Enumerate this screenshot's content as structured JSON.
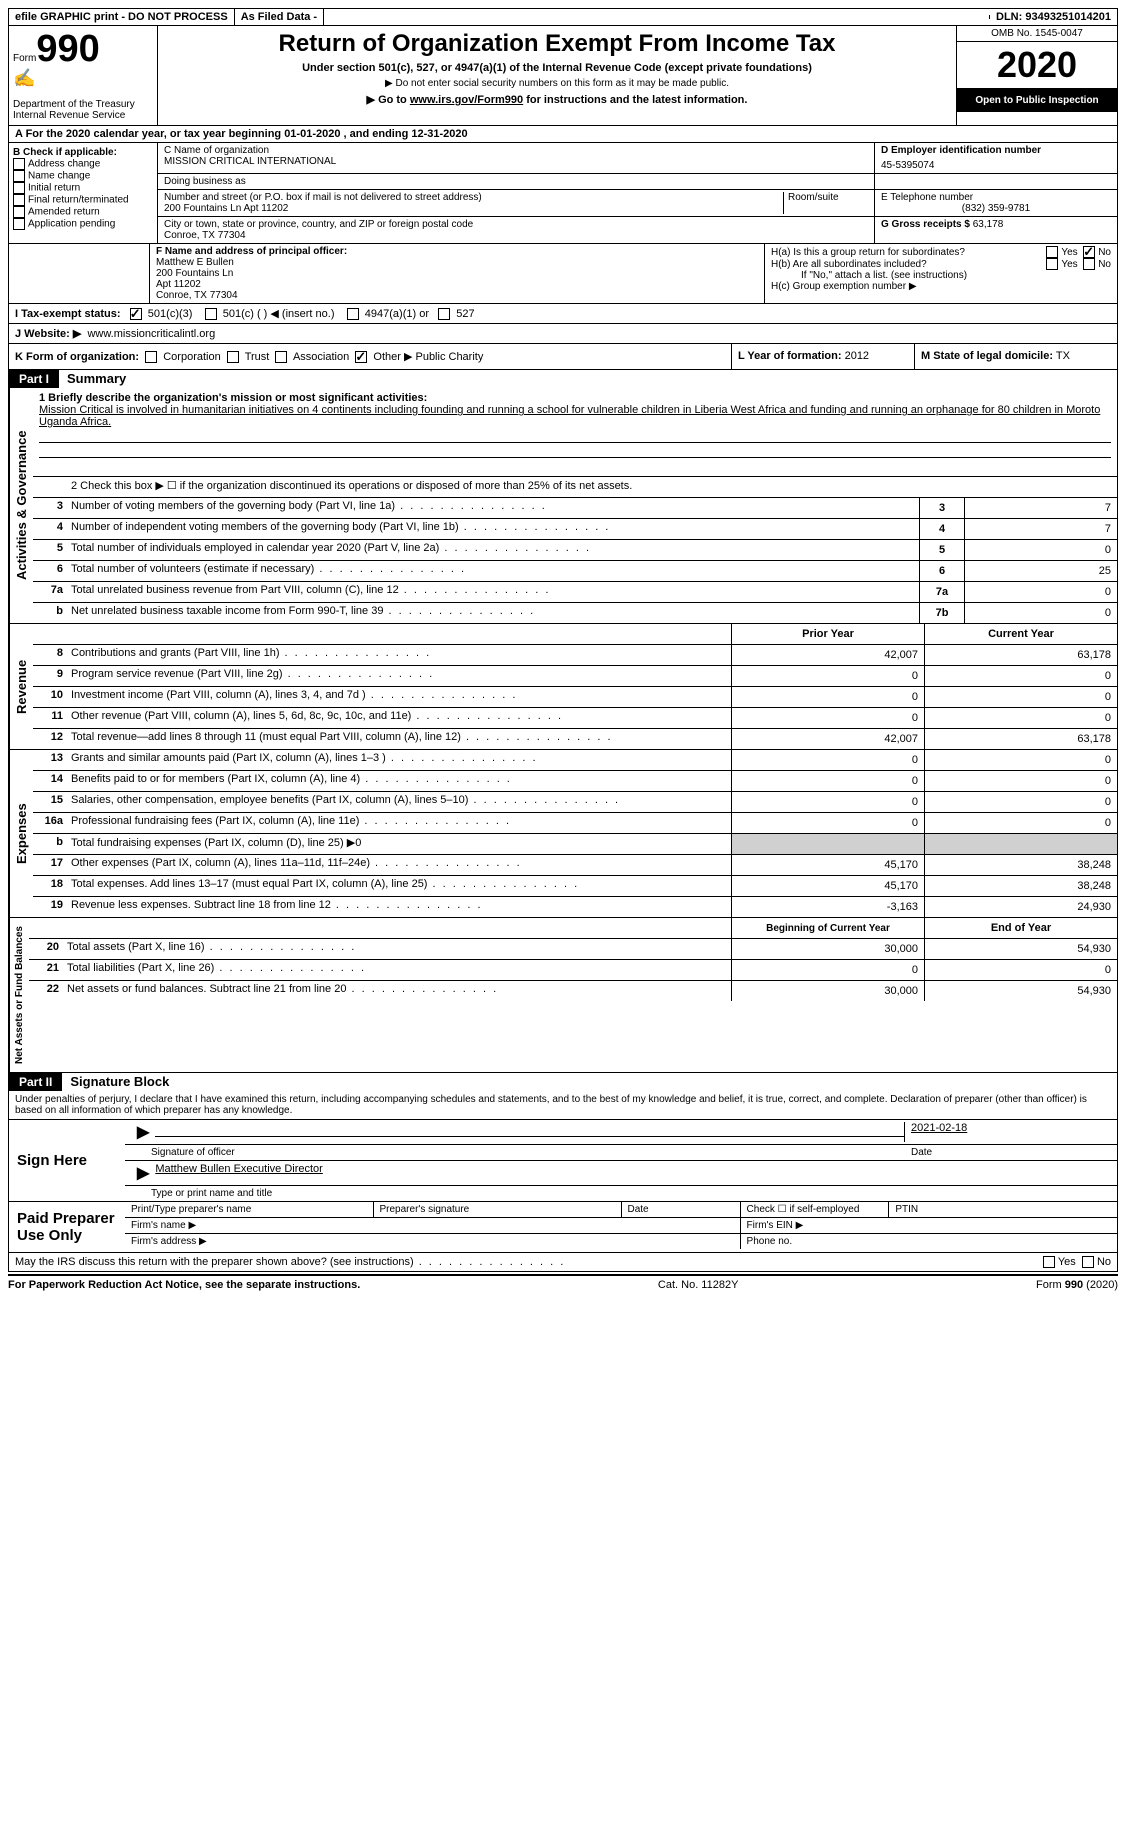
{
  "topbar": {
    "efile": "efile GRAPHIC print - DO NOT PROCESS",
    "asfiled": "As Filed Data -",
    "dln_label": "DLN:",
    "dln": "93493251014201"
  },
  "header": {
    "form_word": "Form",
    "form_number": "990",
    "dept": "Department of the Treasury",
    "irs": "Internal Revenue Service",
    "title": "Return of Organization Exempt From Income Tax",
    "subtitle": "Under section 501(c), 527, or 4947(a)(1) of the Internal Revenue Code (except private foundations)",
    "note1": "▶ Do not enter social security numbers on this form as it may be made public.",
    "note2_pre": "▶ Go to ",
    "note2_link": "www.irs.gov/Form990",
    "note2_post": " for instructions and the latest information.",
    "omb": "OMB No. 1545-0047",
    "year": "2020",
    "inspection": "Open to Public Inspection"
  },
  "row_a": "A  For the 2020 calendar year, or tax year beginning 01-01-2020  , and ending 12-31-2020",
  "section_b": {
    "label": "B Check if applicable:",
    "items": [
      "Address change",
      "Name change",
      "Initial return",
      "Final return/terminated",
      "Amended return",
      "Application pending"
    ]
  },
  "section_c": {
    "name_label": "C Name of organization",
    "name": "MISSION CRITICAL INTERNATIONAL",
    "dba_label": "Doing business as",
    "dba": "",
    "addr_label": "Number and street (or P.O. box if mail is not delivered to street address)",
    "addr": "200 Fountains Ln Apt 11202",
    "room_label": "Room/suite",
    "city_label": "City or town, state or province, country, and ZIP or foreign postal code",
    "city": "Conroe, TX  77304"
  },
  "section_d": {
    "label": "D Employer identification number",
    "value": "45-5395074"
  },
  "section_e": {
    "label": "E Telephone number",
    "value": "(832) 359-9781"
  },
  "section_g": {
    "label": "G Gross receipts $",
    "value": "63,178"
  },
  "section_f": {
    "label": "F  Name and address of principal officer:",
    "name": "Matthew E Bullen",
    "addr1": "200 Fountains Ln",
    "addr2": "Apt 11202",
    "city": "Conroe, TX  77304"
  },
  "section_h": {
    "a": "H(a)  Is this a group return for subordinates?",
    "b": "H(b)  Are all subordinates included?",
    "b_note": "If \"No,\" attach a list. (see instructions)",
    "c": "H(c)  Group exemption number ▶",
    "yes": "Yes",
    "no": "No"
  },
  "section_i": {
    "label": "I  Tax-exempt status:",
    "opt1": "501(c)(3)",
    "opt2": "501(c) (  ) ◀ (insert no.)",
    "opt3": "4947(a)(1) or",
    "opt4": "527"
  },
  "section_j": {
    "label": "J  Website: ▶",
    "value": "www.missioncriticalintl.org"
  },
  "section_k": {
    "label": "K Form of organization:",
    "opts": [
      "Corporation",
      "Trust",
      "Association",
      "Other ▶"
    ],
    "other_val": "Public Charity"
  },
  "section_l": {
    "label": "L Year of formation:",
    "value": "2012"
  },
  "section_m": {
    "label": "M State of legal domicile:",
    "value": "TX"
  },
  "part1": {
    "header": "Part I",
    "title": "Summary",
    "line1_label": "1  Briefly describe the organization's mission or most significant activities:",
    "line1_text": "Mission Critical is involved in humanitarian initiatives on 4 continents including founding and running a school for vulnerable children in Liberia West Africa and funding and running an orphanage for 80 children in Moroto Uganda Africa.",
    "line2": "2   Check this box ▶ ☐ if the organization discontinued its operations or disposed of more than 25% of its net assets.",
    "governance": [
      {
        "n": "3",
        "t": "Number of voting members of the governing body (Part VI, line 1a)",
        "b": "3",
        "v": "7"
      },
      {
        "n": "4",
        "t": "Number of independent voting members of the governing body (Part VI, line 1b)",
        "b": "4",
        "v": "7"
      },
      {
        "n": "5",
        "t": "Total number of individuals employed in calendar year 2020 (Part V, line 2a)",
        "b": "5",
        "v": "0"
      },
      {
        "n": "6",
        "t": "Total number of volunteers (estimate if necessary)",
        "b": "6",
        "v": "25"
      },
      {
        "n": "7a",
        "t": "Total unrelated business revenue from Part VIII, column (C), line 12",
        "b": "7a",
        "v": "0"
      },
      {
        "n": "b",
        "t": "Net unrelated business taxable income from Form 990-T, line 39",
        "b": "7b",
        "v": "0"
      }
    ],
    "col_prior": "Prior Year",
    "col_current": "Current Year",
    "revenue": [
      {
        "n": "8",
        "t": "Contributions and grants (Part VIII, line 1h)",
        "p": "42,007",
        "c": "63,178"
      },
      {
        "n": "9",
        "t": "Program service revenue (Part VIII, line 2g)",
        "p": "0",
        "c": "0"
      },
      {
        "n": "10",
        "t": "Investment income (Part VIII, column (A), lines 3, 4, and 7d )",
        "p": "0",
        "c": "0"
      },
      {
        "n": "11",
        "t": "Other revenue (Part VIII, column (A), lines 5, 6d, 8c, 9c, 10c, and 11e)",
        "p": "0",
        "c": "0"
      },
      {
        "n": "12",
        "t": "Total revenue—add lines 8 through 11 (must equal Part VIII, column (A), line 12)",
        "p": "42,007",
        "c": "63,178"
      }
    ],
    "expenses": [
      {
        "n": "13",
        "t": "Grants and similar amounts paid (Part IX, column (A), lines 1–3 )",
        "p": "0",
        "c": "0"
      },
      {
        "n": "14",
        "t": "Benefits paid to or for members (Part IX, column (A), line 4)",
        "p": "0",
        "c": "0"
      },
      {
        "n": "15",
        "t": "Salaries, other compensation, employee benefits (Part IX, column (A), lines 5–10)",
        "p": "0",
        "c": "0"
      },
      {
        "n": "16a",
        "t": "Professional fundraising fees (Part IX, column (A), line 11e)",
        "p": "0",
        "c": "0"
      },
      {
        "n": "b",
        "t": "Total fundraising expenses (Part IX, column (D), line 25) ▶0",
        "p": "",
        "c": "",
        "grey": true
      },
      {
        "n": "17",
        "t": "Other expenses (Part IX, column (A), lines 11a–11d, 11f–24e)",
        "p": "45,170",
        "c": "38,248"
      },
      {
        "n": "18",
        "t": "Total expenses. Add lines 13–17 (must equal Part IX, column (A), line 25)",
        "p": "45,170",
        "c": "38,248"
      },
      {
        "n": "19",
        "t": "Revenue less expenses. Subtract line 18 from line 12",
        "p": "-3,163",
        "c": "24,930"
      }
    ],
    "col_begin": "Beginning of Current Year",
    "col_end": "End of Year",
    "netassets": [
      {
        "n": "20",
        "t": "Total assets (Part X, line 16)",
        "p": "30,000",
        "c": "54,930"
      },
      {
        "n": "21",
        "t": "Total liabilities (Part X, line 26)",
        "p": "0",
        "c": "0"
      },
      {
        "n": "22",
        "t": "Net assets or fund balances. Subtract line 21 from line 20",
        "p": "30,000",
        "c": "54,930"
      }
    ],
    "vert_gov": "Activities & Governance",
    "vert_rev": "Revenue",
    "vert_exp": "Expenses",
    "vert_net": "Net Assets or Fund Balances"
  },
  "part2": {
    "header": "Part II",
    "title": "Signature Block",
    "perjury": "Under penalties of perjury, I declare that I have examined this return, including accompanying schedules and statements, and to the best of my knowledge and belief, it is true, correct, and complete. Declaration of preparer (other than officer) is based on all information of which preparer has any knowledge.",
    "sign_here": "Sign Here",
    "sig_date": "2021-02-18",
    "sig_officer": "Signature of officer",
    "date": "Date",
    "name_title": "Matthew Bullen  Executive Director",
    "type_name": "Type or print name and title",
    "paid_prep": "Paid Preparer Use Only",
    "prep_name": "Print/Type preparer's name",
    "prep_sig": "Preparer's signature",
    "prep_date": "Date",
    "check_self": "Check ☐ if self-employed",
    "ptin": "PTIN",
    "firm_name": "Firm's name  ▶",
    "firm_ein": "Firm's EIN ▶",
    "firm_addr": "Firm's address ▶",
    "phone": "Phone no.",
    "discuss": "May the IRS discuss this return with the preparer shown above? (see instructions)",
    "yes": "Yes",
    "no": "No"
  },
  "footer": {
    "left": "For Paperwork Reduction Act Notice, see the separate instructions.",
    "mid": "Cat. No. 11282Y",
    "right": "Form 990 (2020)"
  }
}
